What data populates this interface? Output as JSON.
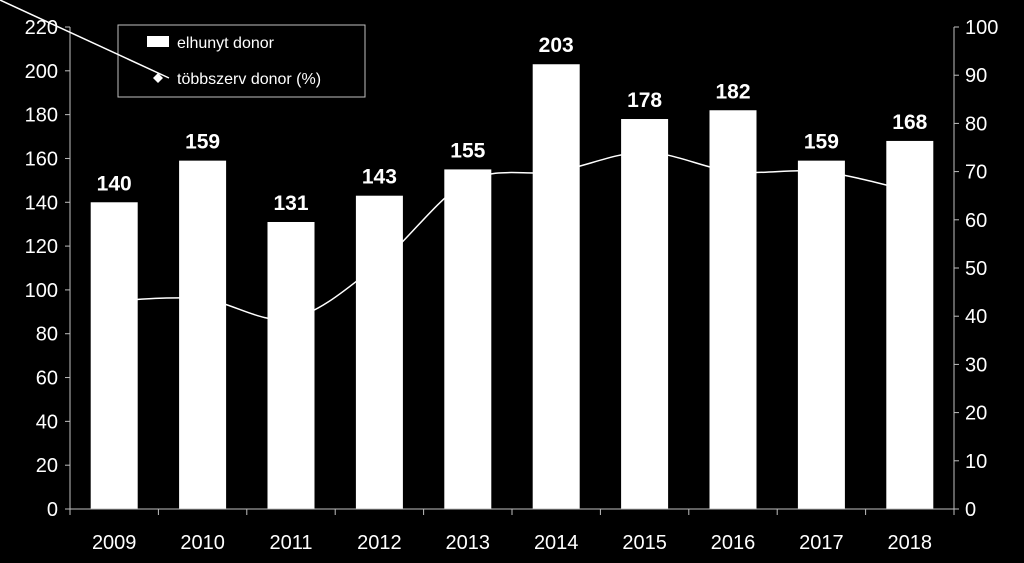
{
  "chart_data": {
    "type": "bar",
    "categories": [
      "2009",
      "2010",
      "2011",
      "2012",
      "2013",
      "2014",
      "2015",
      "2016",
      "2017",
      "2018"
    ],
    "series": [
      {
        "name": "elhunyt donor",
        "type": "bar",
        "axis": "left",
        "values": [
          140,
          159,
          131,
          143,
          155,
          203,
          178,
          182,
          159,
          168
        ],
        "data_labels": [
          "140",
          "159",
          "131",
          "143",
          "155",
          "203",
          "178",
          "182",
          "159",
          "168"
        ]
      },
      {
        "name": "többszerv donor (%)",
        "type": "line",
        "axis": "right",
        "values": [
          43.2,
          43.6,
          39.5,
          51.0,
          68.0,
          70.0,
          74.0,
          70.0,
          70.0,
          66.0
        ]
      }
    ],
    "y_left": {
      "ylim": [
        0,
        220
      ],
      "ticks": [
        "0",
        "20",
        "40",
        "60",
        "80",
        "100",
        "120",
        "140",
        "160",
        "180",
        "200",
        "220"
      ]
    },
    "y_right": {
      "ylim": [
        0,
        100
      ],
      "ticks": [
        "0",
        "10",
        "20",
        "30",
        "40",
        "50",
        "60",
        "70",
        "80",
        "90",
        "100"
      ]
    },
    "title": "",
    "xlabel": "",
    "ylabel": "",
    "legend": {
      "placement": "top-left"
    },
    "grid": false,
    "colors": {
      "background": "#000000",
      "bar": "#ffffff",
      "line": "#ffffff",
      "axis": "#bfbfbf",
      "text": "#ffffff"
    }
  }
}
